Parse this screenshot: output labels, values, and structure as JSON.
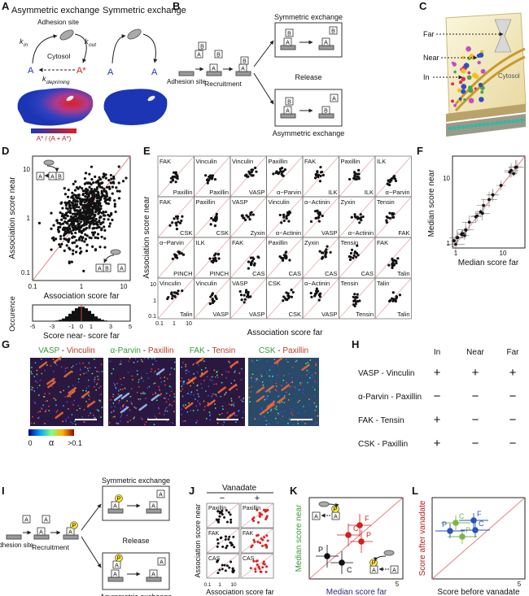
{
  "A": {
    "label": "A",
    "title_asym": "Asymmetric exchange",
    "title_sym": "Symmetric exchange",
    "adhesion_site": "Adhesion site",
    "k": "k",
    "k_in_sub": "in",
    "k_out_sub": "out",
    "k_dep_sub": "depriming",
    "cytosol": "Cytosol",
    "species": "A",
    "species_star": "A*",
    "colorbar": "A* / (A + A*)"
  },
  "B": {
    "label": "B",
    "box_a": "A",
    "box_b": "B",
    "adhesion_site": "Adhesion site",
    "recruitment": "Recruitment",
    "symmetric": "Symmetric exchange",
    "release": "Release",
    "asymmetric": "Asymmetric exchange"
  },
  "C": {
    "label": "C",
    "far": "Far",
    "near": "Near",
    "in": "In",
    "cytosol": "Cytosol"
  },
  "D": {
    "label": "D",
    "y_label": "Association score near",
    "x_label": "Association score far",
    "ticks": [
      "0.1",
      "1",
      "10"
    ],
    "box_a": "A",
    "box_b": "B",
    "hist_y_label": "Occurence",
    "hist_x_label": "Score near- score far",
    "hist_ticks": [
      "-5",
      "-3",
      "-1",
      "0",
      "1",
      "3",
      "5"
    ]
  },
  "E": {
    "label": "E",
    "pairs": [
      [
        "FAK",
        "Paxillin"
      ],
      [
        "Vinculin",
        "Paxillin"
      ],
      [
        "Vinculin",
        "VASP"
      ],
      [
        "Paxillin",
        "α−Parvin"
      ],
      [
        "FAK",
        "ILK"
      ],
      [
        "Paxillin",
        "ILK"
      ],
      [
        "ILK",
        "α−Parvin"
      ],
      [
        "FAK",
        "CSK"
      ],
      [
        "Paxillin",
        "CSK"
      ],
      [
        "VASP",
        "Zyxin"
      ],
      [
        "Vinculin",
        "α−Actinin"
      ],
      [
        "α−Actinin",
        "VASP"
      ],
      [
        "Zyxin",
        "α−Actinin"
      ],
      [
        "Tensin",
        "FAK"
      ],
      [
        "α−Parvin",
        "PINCH"
      ],
      [
        "ILK",
        "PINCH"
      ],
      [
        "FAK",
        "CAS"
      ],
      [
        "Paxillin",
        "CAS"
      ],
      [
        "Zyxin",
        "CAS"
      ],
      [
        "Tensin",
        "CAS"
      ],
      [
        "FAK",
        "Talin"
      ],
      [
        "Vinculin",
        "Talin"
      ],
      [
        "Vinculin",
        "VASP"
      ],
      [
        "VASP",
        "VASP"
      ],
      [
        "CSK",
        "CSK"
      ],
      [
        "α−Actinin",
        "VASP"
      ],
      [
        "Tensin",
        "Tensin"
      ],
      [
        "Talin",
        "Talin"
      ]
    ],
    "y_label": "Association score near",
    "x_label": "Association score far",
    "ticks": [
      "0.1",
      "1",
      "10"
    ]
  },
  "F": {
    "label": "F",
    "y_label": "Median score near",
    "x_label": "Median score far",
    "ticks": [
      "1",
      "10"
    ]
  },
  "G": {
    "label": "G",
    "titles": [
      [
        "VASP",
        " - ",
        "Vinculin"
      ],
      [
        "α-Parvin",
        " - ",
        "Paxillin"
      ],
      [
        "FAK",
        " - ",
        "Tensin"
      ],
      [
        "CSK",
        " - ",
        "Paxillin"
      ]
    ],
    "colorbar": [
      "0",
      "α",
      ">0.1"
    ]
  },
  "H": {
    "label": "H",
    "columns": [
      "In",
      "Near",
      "Far"
    ],
    "rows": [
      {
        "name": "VASP - Vinculin",
        "cells": [
          "+",
          "+",
          "+"
        ]
      },
      {
        "name": "α-Parvin - Paxillin",
        "cells": [
          "−",
          "−",
          "−"
        ]
      },
      {
        "name": "FAK - Tensin",
        "cells": [
          "+",
          "−",
          "−"
        ]
      },
      {
        "name": "CSK - Paxillin",
        "cells": [
          "+",
          "−",
          "−"
        ]
      }
    ]
  },
  "I": {
    "label": "I",
    "box_a": "A",
    "phospho": "P",
    "adhesion_site": "Adhesion site",
    "recruitment": "Recruitment",
    "symmetric": "Symmetric exchange",
    "release": "Release",
    "asymmetric": "Asymmetric exchange"
  },
  "J": {
    "label": "J",
    "vanadate": "Vanadate",
    "minus": "−",
    "plus": "+",
    "rows": [
      "Paxillin",
      "FAK",
      "CAS"
    ],
    "y_label": "Association score near",
    "x_label": "Association score far",
    "ticks": [
      "0.1",
      "1",
      "10"
    ]
  },
  "K": {
    "label": "K",
    "y_label": "Median score near",
    "x_label": "Median score far",
    "tick": "5",
    "points": [
      "P",
      "C",
      "F",
      "C",
      "P"
    ],
    "box_a": "A",
    "phospho": "P"
  },
  "L": {
    "label": "L",
    "y_label": "Score after vanadate",
    "x_label": "Score before vanadate",
    "tick": "5",
    "points": [
      "C",
      "F",
      "P",
      "P",
      "C"
    ]
  }
}
